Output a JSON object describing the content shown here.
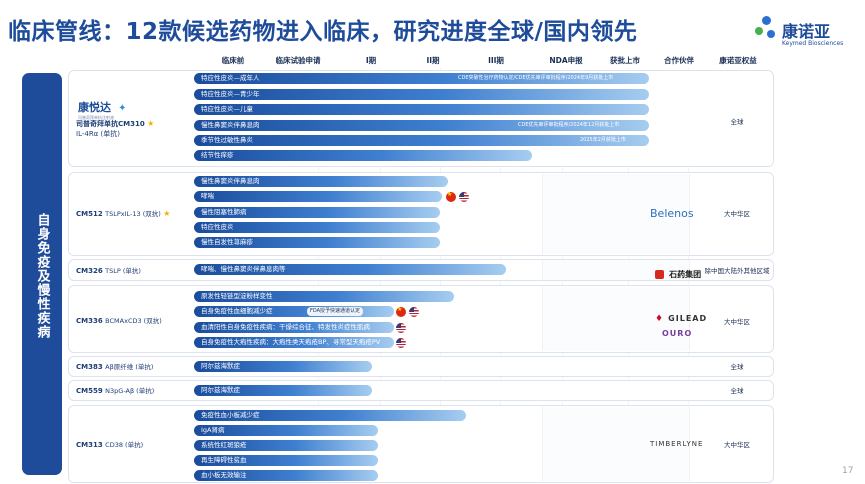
{
  "title": "临床管线：12款候选药物进入临床，研究进度全球/国内领先",
  "logo": {
    "cn": "康诺亚",
    "en": "Keymed Biosciences"
  },
  "side_label": "自身免疫及慢性疾病",
  "page_number": "17",
  "headers": [
    "临床前",
    "临床试验申请",
    "I期",
    "II期",
    "III期",
    "NDA申报",
    "获批上市",
    "合作伙伴",
    "康诺亚权益"
  ],
  "groups": [
    {
      "brand": {
        "cn": "康悦达",
        "sub": "司普奇拜单抗注射液"
      },
      "name": "司普奇拜单抗CM310",
      "target": "IL-4Rα (单抗)",
      "star": "★",
      "region": "全球",
      "rows": [
        {
          "label": "特应性皮炎—成年人",
          "note": "CDE突破性治疗药物认定/CDE优先审评审批程序/2024年9月获批上市"
        },
        {
          "label": "特应性皮炎—青少年",
          "note": ""
        },
        {
          "label": "特应性皮炎—儿童",
          "note": ""
        },
        {
          "label": "慢性鼻窦炎伴鼻息肉",
          "note": "CDE优先审评审批程序/2024年12月获批上市"
        },
        {
          "label": "季节性过敏性鼻炎",
          "note": "2025年2月获批上市"
        },
        {
          "label": "结节性痒疹",
          "note": ""
        }
      ]
    },
    {
      "name": "CM512",
      "target": "TSLPxIL-13 (双抗)",
      "star": "★",
      "partner": "Belenos",
      "region": "大中华区",
      "rows": [
        {
          "label": "慢性鼻窦炎伴鼻息肉"
        },
        {
          "label": "哮喘"
        },
        {
          "label": "慢性阻塞性肺病"
        },
        {
          "label": "特应性皮炎"
        },
        {
          "label": "慢性自发性荨麻疹"
        }
      ]
    },
    {
      "name": "CM326",
      "target": "TSLP (单抗)",
      "partner": "石药集团",
      "region": "除中国大陆外其他区域",
      "rows": [
        {
          "label": "哮喘、慢性鼻窦炎伴鼻息肉等"
        }
      ]
    },
    {
      "name": "CM336",
      "target": "BCMAxCD3 (双抗)",
      "partner": [
        "GILEAD",
        "OURO"
      ],
      "region": "大中华区",
      "rows": [
        {
          "label": "原发性轻链型淀粉样变性"
        },
        {
          "label": "自身免疫性血细胞减少症",
          "note": "FDA授予快速通道认定"
        },
        {
          "label": "血清阳性自身免疫性疾病：干燥综合征、特发性炎症性肌病"
        },
        {
          "label": "自身免疫性大疱性疾病：大疱性类天疱疮BP、寻常型天疱疮PV"
        }
      ]
    },
    {
      "name": "CM383",
      "target": "Aβ原纤维 (单抗)",
      "region": "全球",
      "rows": [
        {
          "label": "阿尔兹海默症"
        }
      ]
    },
    {
      "name": "CM559",
      "target": "N3pG-Aβ (单抗)",
      "region": "全球",
      "rows": [
        {
          "label": "阿尔兹海默症"
        }
      ]
    },
    {
      "name": "CM313",
      "target": "CD38 (单抗)",
      "partner": "TIMBERLYNE",
      "region": "大中华区",
      "rows": [
        {
          "label": "免疫性血小板减少症"
        },
        {
          "label": "IgA肾病"
        },
        {
          "label": "系统性红斑狼疮"
        },
        {
          "label": "再生障碍性贫血"
        },
        {
          "label": "血小板无效输注"
        }
      ]
    }
  ]
}
